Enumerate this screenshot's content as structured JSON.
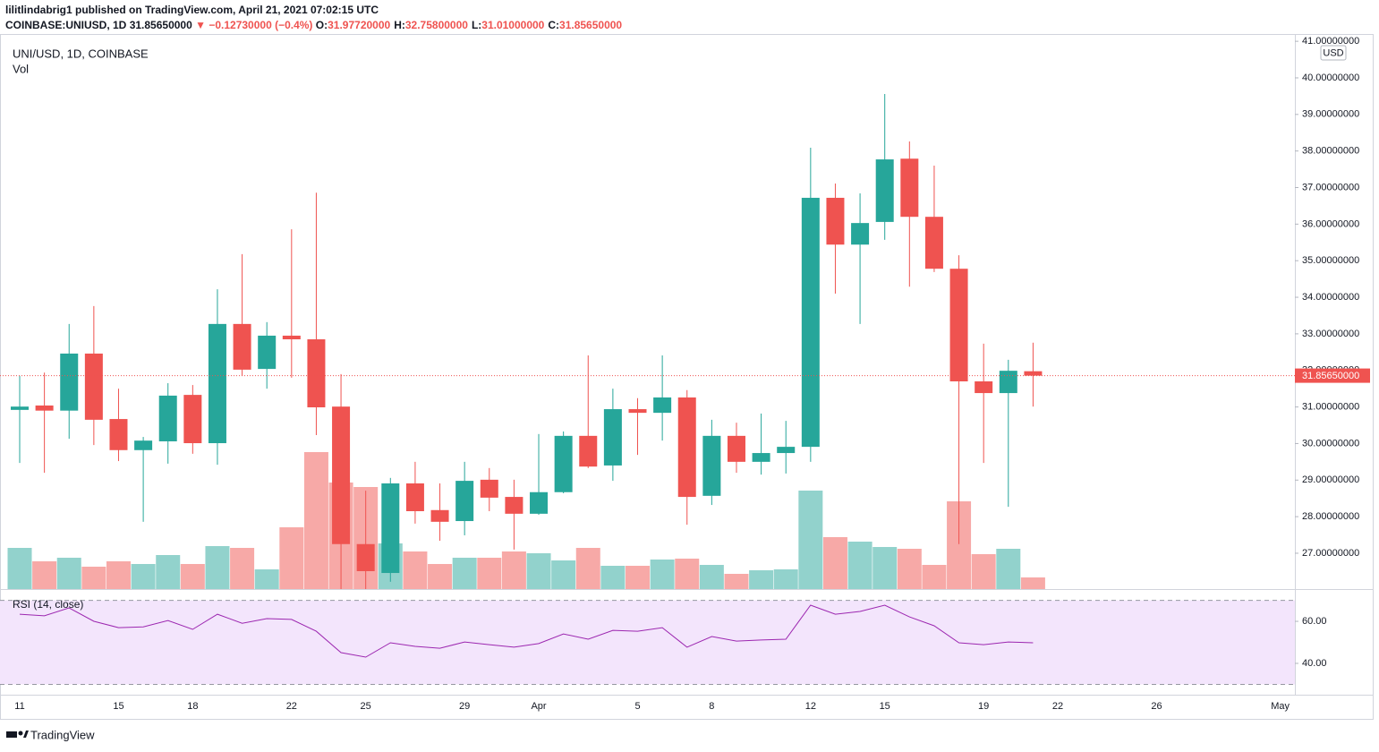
{
  "header": {
    "publisher": "lilitlindabrig1 published on TradingView.com, April 21, 2021 07:02:15 UTC",
    "symbol": "COINBASE:UNIUSD, 1D",
    "last_price": "31.85650000",
    "change": "▼ −0.12730000 (−0.4%)",
    "ohlc": [
      {
        "label": "O:",
        "value": "31.97720000"
      },
      {
        "label": "H:",
        "value": "32.75800000"
      },
      {
        "label": "L:",
        "value": "31.01000000"
      },
      {
        "label": "C:",
        "value": "31.85650000"
      }
    ]
  },
  "chart_data": {
    "type": "candlestick",
    "title": "UNI/USD, 1D, COINBASE",
    "currency": "USD",
    "categories": [
      "11",
      null,
      null,
      null,
      "15",
      null,
      null,
      "18",
      null,
      null,
      null,
      "22",
      null,
      null,
      "25",
      null,
      null,
      null,
      "29",
      null,
      null,
      "Apr",
      null,
      null,
      null,
      "5",
      null,
      null,
      "8",
      null,
      null,
      null,
      "12",
      null,
      null,
      "15",
      null,
      null,
      null,
      "19",
      null,
      null,
      "22",
      null,
      null,
      null,
      "26",
      null,
      null,
      null,
      null,
      "May"
    ],
    "open": [
      30.92,
      31.04,
      30.9,
      32.46,
      30.67,
      29.82,
      30.06,
      31.33,
      30.01,
      33.27,
      32.04,
      32.95,
      32.85,
      31.01,
      27.25,
      26.46,
      28.91,
      28.18,
      27.88,
      29.01,
      28.54,
      28.08,
      28.67,
      30.21,
      29.4,
      30.94,
      30.84,
      31.26,
      28.57,
      30.21,
      29.5,
      29.74,
      29.91,
      36.72,
      35.44,
      36.06,
      37.79,
      36.2,
      34.78,
      31.7,
      31.38,
      31.9772,
      null,
      null,
      null,
      null,
      null,
      null,
      null,
      null,
      null,
      null
    ],
    "high": [
      31.85,
      31.94,
      33.27,
      33.76,
      31.5,
      30.18,
      31.65,
      31.6,
      34.22,
      35.18,
      33.32,
      35.86,
      36.86,
      31.9,
      28.71,
      29.06,
      29.5,
      28.91,
      29.5,
      29.33,
      29.01,
      30.26,
      30.33,
      32.41,
      31.5,
      31.24,
      32.41,
      31.46,
      30.65,
      30.57,
      30.82,
      30.62,
      38.09,
      37.11,
      36.84,
      39.56,
      38.26,
      37.6,
      35.15,
      32.73,
      32.29,
      32.758,
      null,
      null,
      null,
      null,
      null,
      null,
      null,
      null,
      null,
      null
    ],
    "low": [
      29.47,
      29.2,
      30.13,
      29.96,
      29.52,
      27.86,
      29.45,
      29.72,
      29.42,
      31.85,
      31.5,
      31.8,
      30.23,
      26.02,
      26.02,
      26.22,
      27.81,
      27.34,
      27.49,
      28.15,
      27.1,
      28.05,
      28.64,
      29.33,
      28.98,
      29.69,
      30.08,
      27.78,
      28.32,
      29.2,
      29.15,
      29.18,
      29.5,
      34.1,
      33.27,
      35.57,
      34.29,
      34.69,
      27.25,
      29.47,
      28.27,
      31.01,
      null,
      null,
      null,
      null,
      null,
      null,
      null,
      null,
      null,
      null
    ],
    "close": [
      31.01,
      30.9,
      32.46,
      30.65,
      29.82,
      30.08,
      31.31,
      30.01,
      33.27,
      32.02,
      32.95,
      32.85,
      30.99,
      27.25,
      26.51,
      28.91,
      28.15,
      27.86,
      28.98,
      28.52,
      28.08,
      28.67,
      30.21,
      29.37,
      30.94,
      30.84,
      31.26,
      28.54,
      30.21,
      29.5,
      29.74,
      29.91,
      36.72,
      35.44,
      36.03,
      37.77,
      36.2,
      34.78,
      31.7,
      31.38,
      31.99,
      31.8565,
      null,
      null,
      null,
      null,
      null,
      null,
      null,
      null,
      null,
      null
    ],
    "up_color": "#26a69a",
    "down_color": "#ef5350",
    "ylim": [
      26.02,
      41.15
    ],
    "yticks": [
      {
        "value": 27,
        "label": "27.00000000"
      },
      {
        "value": 28,
        "label": "28.00000000"
      },
      {
        "value": 29,
        "label": "29.00000000"
      },
      {
        "value": 30,
        "label": "30.00000000"
      },
      {
        "value": 31,
        "label": "31.00000000"
      },
      {
        "value": 32,
        "label": "32.00000000"
      },
      {
        "value": 33,
        "label": "33.00000000"
      },
      {
        "value": 34,
        "label": "34.00000000"
      },
      {
        "value": 35,
        "label": "35.00000000"
      },
      {
        "value": 36,
        "label": "36.00000000"
      },
      {
        "value": 37,
        "label": "37.00000000"
      },
      {
        "value": 38,
        "label": "38.00000000"
      },
      {
        "value": 39,
        "label": "39.00000000"
      },
      {
        "value": 40,
        "label": "40.00000000"
      },
      {
        "value": 41,
        "label": "41.00000000"
      }
    ],
    "volume": {
      "name": "Vol",
      "values": [
        46,
        31,
        35,
        25,
        31,
        28,
        38,
        28,
        48,
        46,
        22,
        69,
        153,
        119,
        114,
        51,
        42,
        28,
        35,
        35,
        42,
        40,
        32,
        46,
        26,
        26,
        33,
        34,
        27,
        17,
        21,
        22,
        110,
        58,
        53,
        47,
        45,
        27,
        98,
        39,
        45,
        13,
        null,
        null,
        null,
        null,
        null,
        null,
        null,
        null,
        null,
        null
      ]
    },
    "rsi": {
      "name": "RSI (14, close)",
      "color": "#9c27b0",
      "ylim": [
        25.1,
        74.5
      ],
      "bands": [
        30,
        70
      ],
      "yticks": [
        {
          "value": 40,
          "label": "40.00"
        },
        {
          "value": 60,
          "label": "60.00"
        }
      ],
      "values": [
        63.4,
        62.6,
        66.4,
        60.0,
        57.0,
        57.4,
        60.4,
        56.2,
        63.4,
        59.1,
        61.3,
        60.9,
        55.3,
        45.1,
        43.0,
        49.8,
        48.1,
        47.2,
        50.2,
        48.9,
        47.7,
        49.4,
        54.0,
        51.5,
        55.7,
        55.3,
        57.0,
        47.7,
        52.8,
        50.6,
        51.1,
        51.5,
        67.7,
        63.4,
        64.7,
        67.7,
        62.1,
        57.9,
        49.8,
        48.9,
        50.2,
        49.8,
        null,
        null,
        null,
        null,
        null,
        null,
        null,
        null,
        null,
        null
      ]
    }
  },
  "footer": {
    "brand": "TradingView"
  }
}
